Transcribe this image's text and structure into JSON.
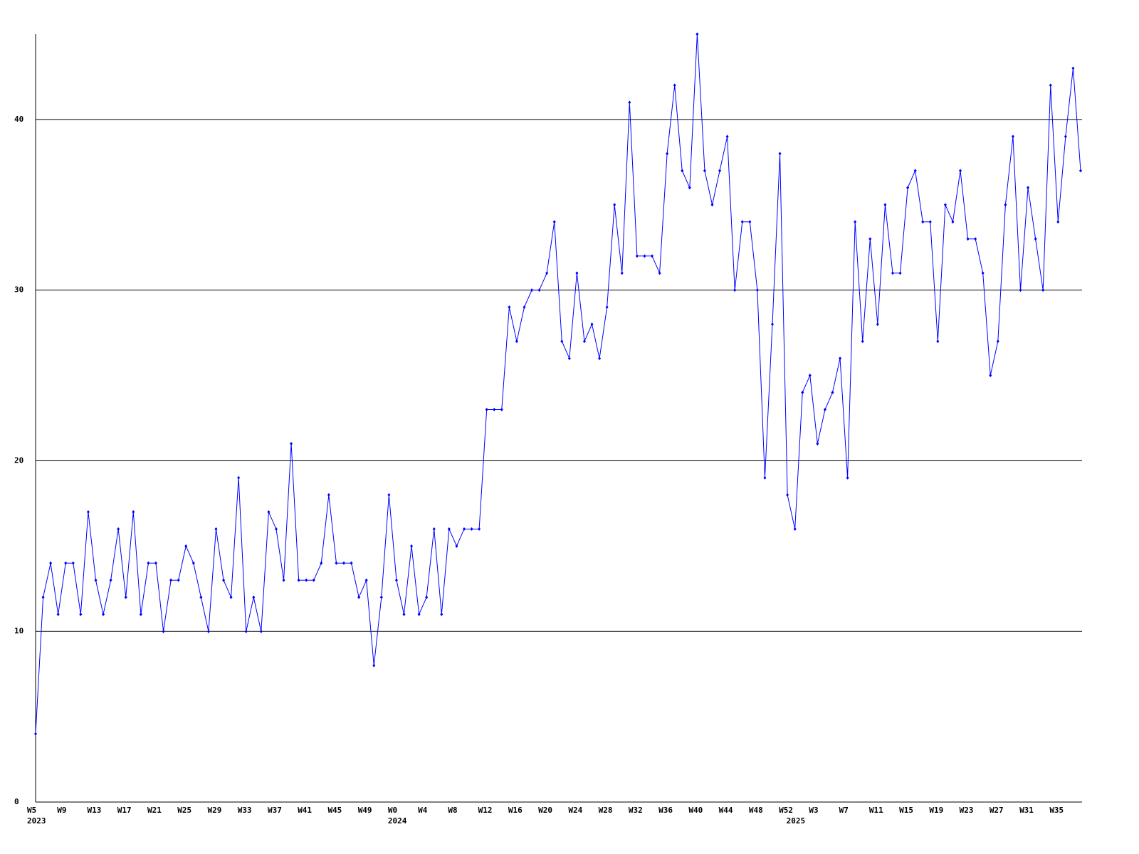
{
  "chart_data": {
    "type": "line",
    "categories": [
      "W5",
      null,
      null,
      null,
      "W9",
      null,
      null,
      null,
      "W13",
      null,
      null,
      null,
      "W17",
      null,
      null,
      null,
      "W21",
      null,
      null,
      null,
      "W25",
      null,
      null,
      null,
      "W29",
      null,
      null,
      null,
      "W33",
      null,
      null,
      null,
      "W37",
      null,
      null,
      null,
      "W41",
      null,
      null,
      null,
      "W45",
      null,
      null,
      null,
      "W49",
      null,
      null,
      null,
      "W0",
      null,
      null,
      null,
      "W4",
      null,
      null,
      null,
      "W8",
      null,
      null,
      null,
      "W12",
      null,
      null,
      null,
      "W16",
      null,
      null,
      null,
      "W20",
      null,
      null,
      null,
      "W24",
      null,
      null,
      null,
      "W28",
      null,
      null,
      null,
      "W32",
      null,
      null,
      null,
      "W36",
      null,
      null,
      null,
      "W40",
      null,
      null,
      null,
      "W44",
      null,
      null,
      null,
      "W48",
      null,
      null,
      null,
      "W52",
      null,
      null,
      null,
      "W3",
      null,
      null,
      null,
      "W7",
      null,
      null,
      null,
      "W11",
      null,
      null,
      null,
      "W15",
      null,
      null,
      null,
      "W19",
      null,
      null,
      null,
      "W23",
      null,
      null,
      null,
      "W27",
      null,
      null,
      null,
      "W31",
      null,
      null,
      null,
      "W35",
      null,
      null,
      null
    ],
    "year_labels": [
      "2023",
      null,
      null,
      null,
      null,
      null,
      null,
      null,
      null,
      null,
      null,
      null,
      null,
      null,
      null,
      null,
      null,
      null,
      null,
      null,
      null,
      null,
      null,
      null,
      null,
      null,
      null,
      null,
      null,
      null,
      null,
      null,
      null,
      null,
      null,
      null,
      null,
      null,
      null,
      null,
      null,
      null,
      null,
      null,
      null,
      null,
      null,
      null,
      "2024",
      null,
      null,
      null,
      null,
      null,
      null,
      null,
      null,
      null,
      null,
      null,
      null,
      null,
      null,
      null,
      null,
      null,
      null,
      null,
      null,
      null,
      null,
      null,
      null,
      null,
      null,
      null,
      null,
      null,
      null,
      null,
      null,
      null,
      null,
      null,
      null,
      null,
      null,
      null,
      null,
      null,
      null,
      null,
      null,
      null,
      null,
      null,
      null,
      null,
      null,
      null,
      null,
      "2025",
      null,
      null,
      null,
      null,
      null,
      null,
      null,
      null,
      null,
      null,
      null,
      null,
      null,
      null,
      null,
      null,
      null,
      null,
      null,
      null,
      null,
      null,
      null,
      null,
      null,
      null,
      null,
      null,
      null,
      null,
      null,
      null,
      null,
      null,
      null,
      null,
      null,
      null
    ],
    "values": [
      4,
      12,
      14,
      11,
      14,
      14,
      11,
      17,
      13,
      11,
      13,
      16,
      12,
      17,
      11,
      14,
      14,
      10,
      13,
      13,
      15,
      14,
      12,
      10,
      16,
      13,
      12,
      19,
      10,
      12,
      10,
      17,
      16,
      13,
      21,
      13,
      13,
      13,
      14,
      18,
      14,
      14,
      14,
      12,
      13,
      8,
      12,
      18,
      13,
      11,
      15,
      11,
      12,
      16,
      11,
      16,
      15,
      16,
      16,
      16,
      23,
      23,
      23,
      29,
      27,
      29,
      30,
      30,
      31,
      34,
      27,
      26,
      31,
      27,
      28,
      26,
      29,
      35,
      31,
      41,
      32,
      32,
      32,
      31,
      38,
      42,
      37,
      36,
      45,
      37,
      35,
      37,
      39,
      30,
      34,
      34,
      30,
      19,
      28,
      38,
      18,
      16,
      24,
      25,
      21,
      23,
      24,
      26,
      19,
      34,
      27,
      33,
      28,
      35,
      31,
      31,
      36,
      37,
      34,
      34,
      27,
      35,
      34,
      37,
      33,
      33,
      31,
      25,
      27,
      35,
      39,
      30,
      36,
      33,
      30,
      42,
      34,
      39,
      43,
      37
    ],
    "color": "#0000ff",
    "ylim": [
      0,
      45
    ],
    "yticks": [
      0,
      10,
      20,
      30,
      40
    ],
    "grid": true
  }
}
